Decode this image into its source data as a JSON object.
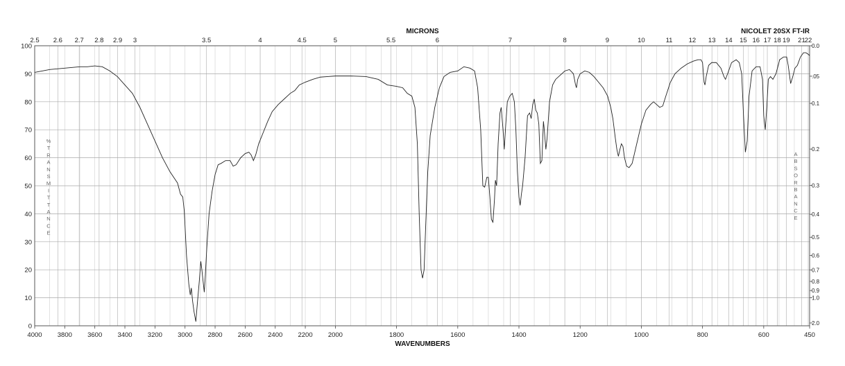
{
  "chart_data": {
    "type": "line",
    "instrument_label": "NICOLET 20SX FT-IR",
    "top_axis_label": "MICRONS",
    "bottom_axis_label": "WAVENUMBERS",
    "left_axis_label": "%TRANSMITTANCE",
    "right_axis_label": "ABSORBANCE",
    "x_range": [
      4000,
      450
    ],
    "y_range": [
      0,
      100
    ],
    "x_ticks": [
      4000,
      3800,
      3600,
      3400,
      3200,
      3000,
      2800,
      2600,
      2400,
      2200,
      2000,
      1800,
      1600,
      1400,
      1200,
      1000,
      800,
      600,
      450
    ],
    "y_ticks": [
      0,
      10,
      20,
      30,
      40,
      50,
      60,
      70,
      80,
      90,
      100
    ],
    "micron_ticks": [
      {
        "label": "2.5",
        "um": 2.5
      },
      {
        "label": "2.6",
        "um": 2.6
      },
      {
        "label": "2.7",
        "um": 2.7
      },
      {
        "label": "2.8",
        "um": 2.8
      },
      {
        "label": "2.9",
        "um": 2.9
      },
      {
        "label": "3",
        "um": 3.0
      },
      {
        "label": "3.5",
        "um": 3.5
      },
      {
        "label": "4",
        "um": 4.0
      },
      {
        "label": "4.5",
        "um": 4.5
      },
      {
        "label": "5",
        "um": 5.0
      },
      {
        "label": "5.5",
        "um": 5.5
      },
      {
        "label": "6",
        "um": 6.0
      },
      {
        "label": "7",
        "um": 7.0
      },
      {
        "label": "8",
        "um": 8.0
      },
      {
        "label": "9",
        "um": 9.0
      },
      {
        "label": "10",
        "um": 10.0
      },
      {
        "label": "11",
        "um": 11.0
      },
      {
        "label": "12",
        "um": 12.0
      },
      {
        "label": "13",
        "um": 13.0
      },
      {
        "label": "14",
        "um": 14.0
      },
      {
        "label": "15",
        "um": 15.0
      },
      {
        "label": "16",
        "um": 16.0
      },
      {
        "label": "17",
        "um": 17.0
      },
      {
        "label": "18",
        "um": 18.0
      },
      {
        "label": "19",
        "um": 19.0
      },
      {
        "label": "21",
        "um": 21.0
      },
      {
        "label": "22",
        "um": 22.0
      }
    ],
    "absorbance_ticks": [
      {
        "label": "0.0",
        "value": 0.0
      },
      {
        "label": ".05",
        "value": 0.05
      },
      {
        "label": "0.1",
        "value": 0.1
      },
      {
        "label": "0.2",
        "value": 0.2
      },
      {
        "label": "0.3",
        "value": 0.3
      },
      {
        "label": "0.4",
        "value": 0.4
      },
      {
        "label": "0.5",
        "value": 0.5
      },
      {
        "label": "0.6",
        "value": 0.6
      },
      {
        "label": "0.7",
        "value": 0.7
      },
      {
        "label": "0.8",
        "value": 0.8
      },
      {
        "label": "0.9",
        "value": 0.9
      },
      {
        "label": "1.0",
        "value": 1.0
      },
      {
        "label": "2.0",
        "value": 2.0
      }
    ],
    "series": [
      {
        "points": [
          [
            4000,
            90.5
          ],
          [
            3900,
            91.5
          ],
          [
            3800,
            92
          ],
          [
            3700,
            92.5
          ],
          [
            3650,
            92.5
          ],
          [
            3600,
            92.8
          ],
          [
            3550,
            92.5
          ],
          [
            3500,
            91
          ],
          [
            3450,
            89
          ],
          [
            3400,
            86
          ],
          [
            3350,
            83
          ],
          [
            3300,
            78
          ],
          [
            3250,
            72
          ],
          [
            3200,
            66
          ],
          [
            3150,
            60
          ],
          [
            3100,
            55
          ],
          [
            3050,
            51
          ],
          [
            3030,
            47
          ],
          [
            3015,
            46
          ],
          [
            3005,
            41
          ],
          [
            2990,
            25
          ],
          [
            2975,
            15
          ],
          [
            2965,
            11
          ],
          [
            2958,
            13.5
          ],
          [
            2950,
            9
          ],
          [
            2940,
            5
          ],
          [
            2928,
            1.5
          ],
          [
            2918,
            8
          ],
          [
            2905,
            16
          ],
          [
            2895,
            23
          ],
          [
            2888,
            20
          ],
          [
            2880,
            16
          ],
          [
            2872,
            12
          ],
          [
            2865,
            18
          ],
          [
            2855,
            28
          ],
          [
            2840,
            40
          ],
          [
            2820,
            48
          ],
          [
            2800,
            54
          ],
          [
            2780,
            57.5
          ],
          [
            2760,
            58
          ],
          [
            2730,
            59
          ],
          [
            2700,
            59
          ],
          [
            2680,
            57
          ],
          [
            2660,
            57.5
          ],
          [
            2630,
            60
          ],
          [
            2600,
            61.5
          ],
          [
            2575,
            62
          ],
          [
            2560,
            61
          ],
          [
            2545,
            59
          ],
          [
            2530,
            61
          ],
          [
            2510,
            65
          ],
          [
            2480,
            69
          ],
          [
            2450,
            73
          ],
          [
            2420,
            76.5
          ],
          [
            2380,
            79
          ],
          [
            2340,
            81
          ],
          [
            2300,
            83
          ],
          [
            2270,
            84
          ],
          [
            2240,
            86
          ],
          [
            2200,
            87
          ],
          [
            2150,
            88
          ],
          [
            2100,
            88.8
          ],
          [
            2050,
            89
          ],
          [
            2000,
            89.2
          ],
          [
            1950,
            89.2
          ],
          [
            1900,
            89
          ],
          [
            1860,
            88
          ],
          [
            1830,
            86
          ],
          [
            1800,
            85.5
          ],
          [
            1780,
            85
          ],
          [
            1765,
            83
          ],
          [
            1750,
            82
          ],
          [
            1740,
            78
          ],
          [
            1732,
            65
          ],
          [
            1726,
            40
          ],
          [
            1720,
            20
          ],
          [
            1715,
            17
          ],
          [
            1710,
            20
          ],
          [
            1705,
            35
          ],
          [
            1698,
            55
          ],
          [
            1690,
            68
          ],
          [
            1675,
            78
          ],
          [
            1660,
            85
          ],
          [
            1645,
            89
          ],
          [
            1625,
            90.5
          ],
          [
            1600,
            91
          ],
          [
            1580,
            92.5
          ],
          [
            1560,
            92
          ],
          [
            1545,
            91
          ],
          [
            1535,
            85
          ],
          [
            1525,
            70
          ],
          [
            1518,
            50
          ],
          [
            1512,
            49.5
          ],
          [
            1505,
            53
          ],
          [
            1500,
            53
          ],
          [
            1495,
            46
          ],
          [
            1490,
            38
          ],
          [
            1485,
            37
          ],
          [
            1480,
            45
          ],
          [
            1477,
            52
          ],
          [
            1473,
            50
          ],
          [
            1468,
            65
          ],
          [
            1462,
            76
          ],
          [
            1458,
            78
          ],
          [
            1452,
            70
          ],
          [
            1448,
            63
          ],
          [
            1443,
            72
          ],
          [
            1438,
            80
          ],
          [
            1430,
            82
          ],
          [
            1422,
            83
          ],
          [
            1415,
            80
          ],
          [
            1410,
            70
          ],
          [
            1405,
            55
          ],
          [
            1400,
            46
          ],
          [
            1396,
            43
          ],
          [
            1392,
            47
          ],
          [
            1388,
            50
          ],
          [
            1380,
            60
          ],
          [
            1372,
            75
          ],
          [
            1365,
            76
          ],
          [
            1360,
            74
          ],
          [
            1355,
            79
          ],
          [
            1350,
            81
          ],
          [
            1345,
            77
          ],
          [
            1340,
            76
          ],
          [
            1335,
            72
          ],
          [
            1330,
            58
          ],
          [
            1325,
            59
          ],
          [
            1320,
            73
          ],
          [
            1318,
            71
          ],
          [
            1312,
            63
          ],
          [
            1308,
            67
          ],
          [
            1300,
            80
          ],
          [
            1290,
            86
          ],
          [
            1280,
            88
          ],
          [
            1265,
            89.5
          ],
          [
            1250,
            91
          ],
          [
            1235,
            91.5
          ],
          [
            1222,
            90
          ],
          [
            1215,
            86
          ],
          [
            1212,
            85
          ],
          [
            1208,
            88
          ],
          [
            1200,
            90
          ],
          [
            1185,
            91
          ],
          [
            1170,
            90.5
          ],
          [
            1155,
            89
          ],
          [
            1140,
            87
          ],
          [
            1125,
            85
          ],
          [
            1110,
            82
          ],
          [
            1100,
            78
          ],
          [
            1093,
            74
          ],
          [
            1085,
            67
          ],
          [
            1080,
            63
          ],
          [
            1075,
            60.5
          ],
          [
            1070,
            63
          ],
          [
            1065,
            65
          ],
          [
            1060,
            64
          ],
          [
            1055,
            60
          ],
          [
            1048,
            57
          ],
          [
            1040,
            56.5
          ],
          [
            1030,
            58
          ],
          [
            1015,
            65
          ],
          [
            1000,
            72
          ],
          [
            985,
            77
          ],
          [
            970,
            79
          ],
          [
            960,
            80
          ],
          [
            950,
            79
          ],
          [
            940,
            78
          ],
          [
            930,
            78.5
          ],
          [
            920,
            82
          ],
          [
            905,
            87
          ],
          [
            890,
            90
          ],
          [
            870,
            92
          ],
          [
            850,
            93.5
          ],
          [
            830,
            94.5
          ],
          [
            815,
            95
          ],
          [
            805,
            95
          ],
          [
            800,
            94
          ],
          [
            795,
            87
          ],
          [
            792,
            86
          ],
          [
            788,
            89
          ],
          [
            780,
            93
          ],
          [
            770,
            94
          ],
          [
            755,
            94
          ],
          [
            740,
            92
          ],
          [
            730,
            89
          ],
          [
            725,
            88
          ],
          [
            718,
            90
          ],
          [
            705,
            94
          ],
          [
            690,
            95
          ],
          [
            680,
            94
          ],
          [
            672,
            90
          ],
          [
            666,
            75
          ],
          [
            660,
            62
          ],
          [
            654,
            66
          ],
          [
            648,
            82
          ],
          [
            638,
            91
          ],
          [
            625,
            92.5
          ],
          [
            612,
            92.5
          ],
          [
            604,
            88
          ],
          [
            600,
            75
          ],
          [
            595,
            70
          ],
          [
            590,
            78
          ],
          [
            585,
            88
          ],
          [
            578,
            89
          ],
          [
            570,
            88
          ],
          [
            560,
            90
          ],
          [
            548,
            95
          ],
          [
            535,
            96
          ],
          [
            525,
            96
          ],
          [
            520,
            93
          ],
          [
            512,
            86.5
          ],
          [
            505,
            89
          ],
          [
            498,
            92
          ],
          [
            490,
            93
          ],
          [
            480,
            96
          ],
          [
            470,
            97.5
          ],
          [
            462,
            97.5
          ],
          [
            455,
            97
          ],
          [
            450,
            96.5
          ]
        ]
      }
    ]
  }
}
